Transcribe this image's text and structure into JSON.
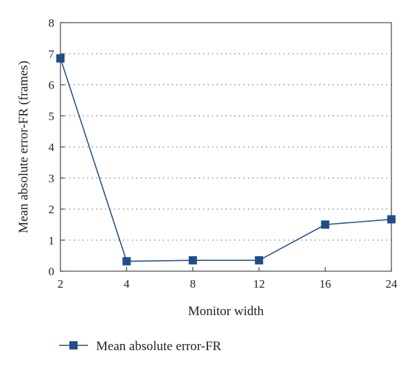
{
  "chart_data": {
    "type": "line",
    "categories": [
      "2",
      "4",
      "8",
      "12",
      "16",
      "24"
    ],
    "series": [
      {
        "name": "Mean absolute error-FR",
        "values": [
          6.85,
          0.32,
          0.35,
          0.35,
          1.5,
          1.67
        ],
        "color": "#1f4e8a"
      }
    ],
    "title": "",
    "xlabel": "Monitor width",
    "ylabel": "Mean absolute error-FR (frames)",
    "ylim": [
      0,
      8
    ],
    "yticks": [
      "0",
      "1",
      "2",
      "3",
      "4",
      "5",
      "6",
      "7",
      "8"
    ],
    "grid": "horizontal-dotted",
    "legend": "bottom-left",
    "marker": "square"
  }
}
